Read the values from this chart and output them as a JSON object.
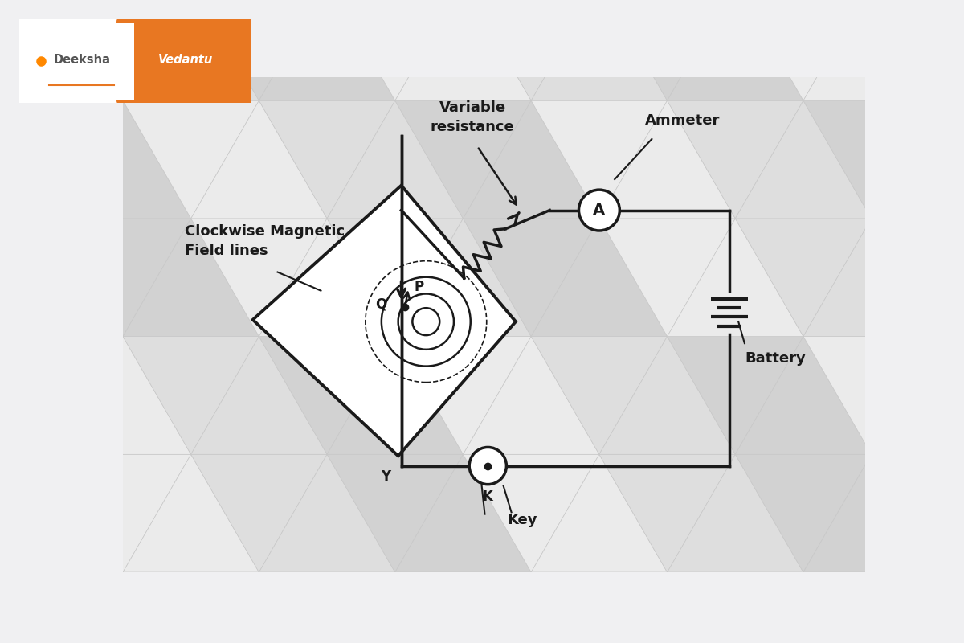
{
  "bg_color": "#f0f0f2",
  "circuit_color": "#1a1a1a",
  "text_color": "#1a1a1a",
  "label_variable_resistance": "Variable\nresistance",
  "label_ammeter": "Ammeter",
  "label_battery": "Battery",
  "label_key": "Key",
  "label_y": "Y",
  "label_k": "K",
  "label_p": "P",
  "label_q": "Q",
  "label_clockwise": "Clockwise Magnetic\nField lines",
  "tri_light": "#ebebeb",
  "tri_mid": "#dedede",
  "tri_dark": "#d2d2d2",
  "orange_color": "#E87722",
  "lw_circuit": 2.5,
  "lw_board": 2.8
}
